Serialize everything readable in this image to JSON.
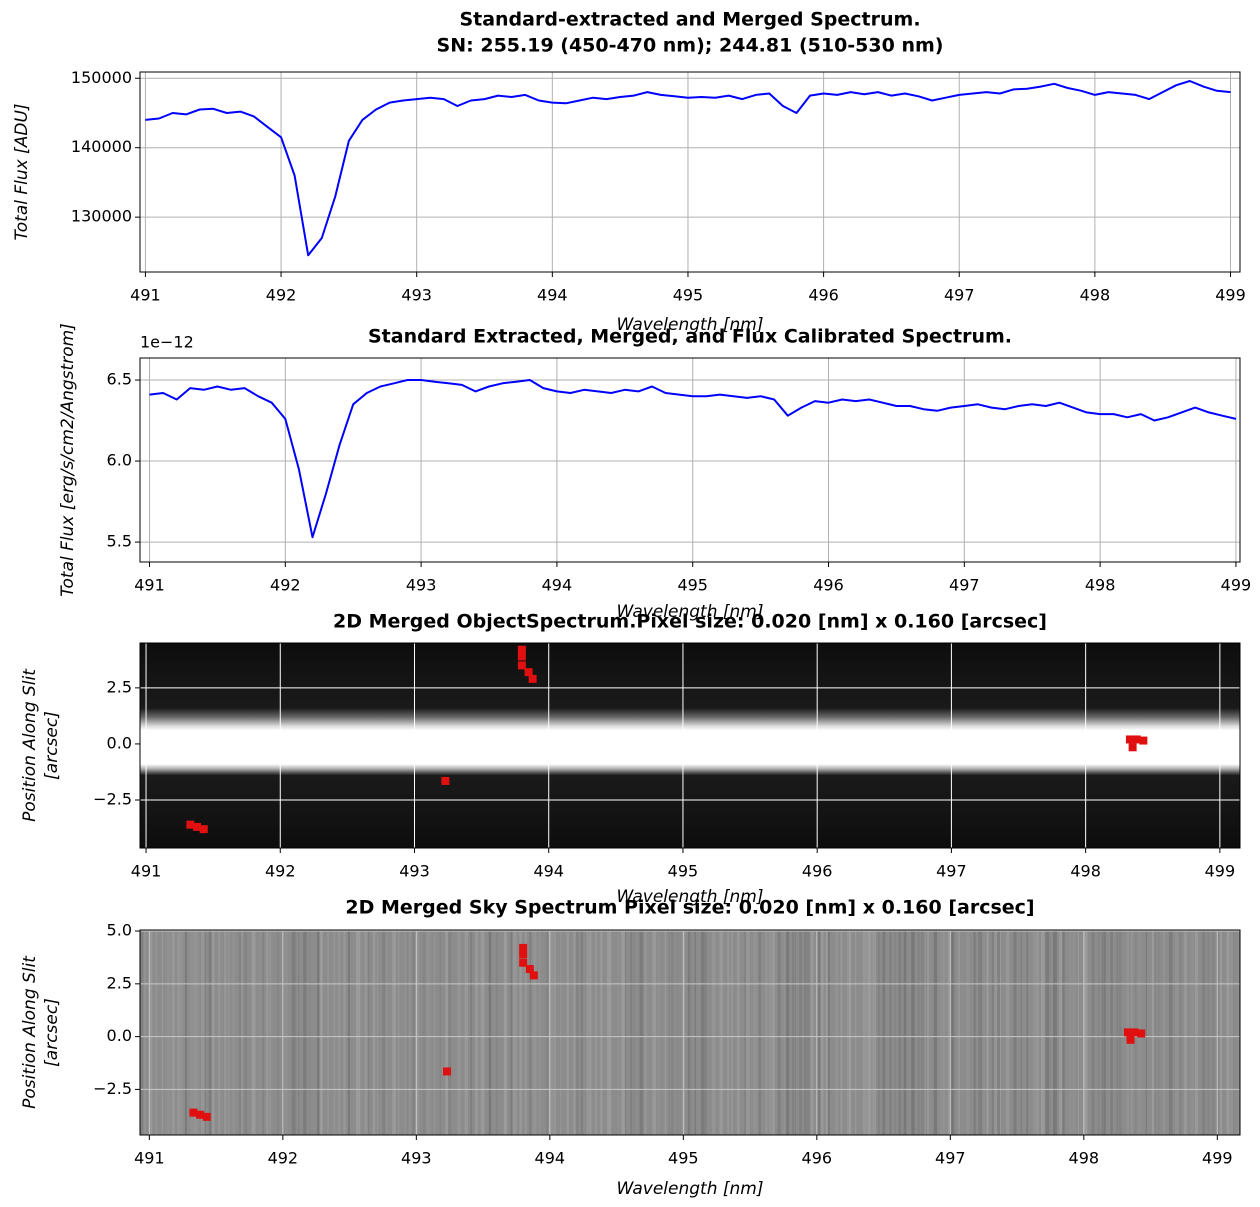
{
  "chart_data": [
    {
      "type": "line",
      "title": [
        "Standard-extracted and Merged Spectrum.",
        "SN: 255.19 (450-470 nm); 244.81 (510-530 nm)"
      ],
      "xlabel": "Wavelength [nm]",
      "ylabel": [
        "Total Flux [ADU]"
      ],
      "xlim": [
        490.96,
        499.07
      ],
      "ylim": [
        122100,
        150900
      ],
      "xticks": [
        491,
        492,
        493,
        494,
        495,
        496,
        497,
        498,
        499
      ],
      "yticks": [
        130000,
        140000,
        150000
      ],
      "grid": true,
      "grid_color": "#b0b0b0",
      "x": [
        491.0,
        491.1,
        491.2,
        491.3,
        491.4,
        491.5,
        491.6,
        491.7,
        491.8,
        491.9,
        492.0,
        492.1,
        492.2,
        492.3,
        492.4,
        492.5,
        492.6,
        492.7,
        492.8,
        492.9,
        493.0,
        493.1,
        493.2,
        493.3,
        493.4,
        493.5,
        493.6,
        493.7,
        493.8,
        493.9,
        494.0,
        494.1,
        494.2,
        494.3,
        494.4,
        494.5,
        494.6,
        494.7,
        494.8,
        494.9,
        495.0,
        495.1,
        495.2,
        495.3,
        495.4,
        495.5,
        495.6,
        495.7,
        495.8,
        495.9,
        496.0,
        496.1,
        496.2,
        496.3,
        496.4,
        496.5,
        496.6,
        496.7,
        496.8,
        496.9,
        497.0,
        497.1,
        497.2,
        497.3,
        497.4,
        497.5,
        497.6,
        497.7,
        497.8,
        497.9,
        498.0,
        498.1,
        498.2,
        498.3,
        498.4,
        498.5,
        498.6,
        498.7,
        498.8,
        498.9,
        499.0
      ],
      "series": [
        {
          "color": "#0000ff",
          "values": [
            144000,
            144200,
            145000,
            144800,
            145500,
            145600,
            145000,
            145200,
            144500,
            143000,
            141500,
            136000,
            124500,
            127000,
            133000,
            141000,
            144000,
            145500,
            146500,
            146800,
            147000,
            147200,
            147000,
            146000,
            146800,
            147000,
            147500,
            147300,
            147600,
            146800,
            146500,
            146400,
            146800,
            147200,
            147000,
            147300,
            147500,
            148000,
            147600,
            147400,
            147200,
            147300,
            147200,
            147500,
            147000,
            147600,
            147800,
            146000,
            145000,
            147500,
            147800,
            147600,
            148000,
            147700,
            148000,
            147500,
            147800,
            147400,
            146800,
            147200,
            147600,
            147800,
            148000,
            147800,
            148400,
            148500,
            148800,
            149200,
            148600,
            148200,
            147600,
            148000,
            147800,
            147600,
            147000,
            148000,
            149000,
            149600,
            148800,
            148200,
            148000
          ]
        }
      ]
    },
    {
      "type": "line",
      "title": [
        "Standard Extracted, Merged, and Flux Calibrated Spectrum."
      ],
      "xlabel": "Wavelength [nm]",
      "ylabel": [
        "Total Flux [erg/s/cm2/Angstrom]"
      ],
      "y_offset_label": "1e−12",
      "xlim": [
        490.93,
        499.03
      ],
      "ylim": [
        5.377,
        6.636
      ],
      "xticks": [
        491,
        492,
        493,
        494,
        495,
        496,
        497,
        498,
        499
      ],
      "yticks": [
        5.5,
        {
          "value": 6,
          "label": "6.0"
        },
        6.5
      ],
      "grid": true,
      "grid_color": "#b0b0b0",
      "x": [
        491.0,
        491.1,
        491.2,
        491.3,
        491.4,
        491.5,
        491.6,
        491.7,
        491.8,
        491.9,
        492.0,
        492.1,
        492.2,
        492.3,
        492.4,
        492.5,
        492.6,
        492.7,
        492.8,
        492.9,
        493.0,
        493.1,
        493.2,
        493.3,
        493.4,
        493.5,
        493.6,
        493.7,
        493.8,
        493.9,
        494.0,
        494.1,
        494.2,
        494.3,
        494.4,
        494.5,
        494.6,
        494.7,
        494.8,
        494.9,
        495.0,
        495.1,
        495.2,
        495.3,
        495.4,
        495.5,
        495.6,
        495.7,
        495.8,
        495.9,
        496.0,
        496.1,
        496.2,
        496.3,
        496.4,
        496.5,
        496.6,
        496.7,
        496.8,
        496.9,
        497.0,
        497.1,
        497.2,
        497.3,
        497.4,
        497.5,
        497.6,
        497.7,
        497.8,
        497.9,
        498.0,
        498.1,
        498.2,
        498.3,
        498.4,
        498.5,
        498.6,
        498.7,
        498.8,
        498.9,
        499.0
      ],
      "series": [
        {
          "color": "#0000ff",
          "values": [
            6.41,
            6.42,
            6.38,
            6.45,
            6.44,
            6.46,
            6.44,
            6.45,
            6.4,
            6.36,
            6.26,
            5.95,
            5.53,
            5.8,
            6.1,
            6.35,
            6.42,
            6.46,
            6.48,
            6.5,
            6.5,
            6.49,
            6.48,
            6.47,
            6.43,
            6.46,
            6.48,
            6.49,
            6.5,
            6.45,
            6.43,
            6.42,
            6.44,
            6.43,
            6.42,
            6.44,
            6.43,
            6.46,
            6.42,
            6.41,
            6.4,
            6.4,
            6.41,
            6.4,
            6.39,
            6.4,
            6.38,
            6.28,
            6.33,
            6.37,
            6.36,
            6.38,
            6.37,
            6.38,
            6.36,
            6.34,
            6.34,
            6.32,
            6.31,
            6.33,
            6.34,
            6.35,
            6.33,
            6.32,
            6.34,
            6.35,
            6.34,
            6.36,
            6.33,
            6.3,
            6.29,
            6.29,
            6.27,
            6.29,
            6.25,
            6.27,
            6.3,
            6.33,
            6.3,
            6.28,
            6.26
          ]
        }
      ]
    },
    {
      "type": "image",
      "title": [
        "2D Merged ObjectSpectrum.Pixel size: 0.020 [nm] x 0.160 [arcsec]"
      ],
      "xlabel": "Wavelength [nm]",
      "ylabel": [
        "Position Along Slit",
        "[arcsec]"
      ],
      "xlim": [
        490.955,
        499.15
      ],
      "ylim": [
        -4.64,
        4.5
      ],
      "xticks": [
        491,
        492,
        493,
        494,
        495,
        496,
        497,
        498,
        499
      ],
      "yticks": [
        {
          "value": -2.5,
          "label": "−2.5"
        },
        {
          "value": 0,
          "label": "0.0"
        },
        2.5
      ],
      "grid": true,
      "grid_color": "#ffffff",
      "profile": {
        "position": [
          4.5,
          1.6,
          1.2,
          0.8,
          0.6,
          -0.9,
          -1.1,
          -1.4,
          -4.64
        ],
        "brightness": [
          0.05,
          0.1,
          0.4,
          0.85,
          1,
          1,
          0.7,
          0.1,
          0.05
        ]
      },
      "markers": {
        "color": "#e01010",
        "x": [
          491.33,
          491.38,
          491.43,
          493.23,
          493.8,
          493.8,
          493.8,
          493.85,
          493.88,
          498.33,
          498.38,
          498.43,
          498.35
        ],
        "y": [
          -3.6,
          -3.7,
          -3.8,
          -1.65,
          4.2,
          3.9,
          3.5,
          3.2,
          2.9,
          0.2,
          0.2,
          0.15,
          -0.15
        ]
      }
    },
    {
      "type": "image",
      "title": [
        "2D Merged Sky Spectrum Pixel size: 0.020 [nm] x 0.160 [arcsec]"
      ],
      "xlabel": "Wavelength [nm]",
      "ylabel": [
        "Position Along Slit",
        "[arcsec]"
      ],
      "xlim": [
        490.93,
        499.17
      ],
      "ylim": [
        -4.66,
        5.05
      ],
      "xticks": [
        491,
        492,
        493,
        494,
        495,
        496,
        497,
        498,
        499
      ],
      "yticks": [
        {
          "value": -2.5,
          "label": "−2.5"
        },
        {
          "value": 0,
          "label": "0.0"
        },
        2.5,
        {
          "value": 5,
          "label": "5.0"
        }
      ],
      "grid": true,
      "grid_color": "#c8c8c8",
      "color": "#8c8c8c",
      "markers": {
        "color": "#e01010",
        "x": [
          491.33,
          491.38,
          491.43,
          493.23,
          493.8,
          493.8,
          493.8,
          493.85,
          493.88,
          498.33,
          498.38,
          498.43,
          498.35
        ],
        "y": [
          -3.6,
          -3.7,
          -3.8,
          -1.65,
          4.2,
          3.9,
          3.5,
          3.2,
          2.9,
          0.2,
          0.2,
          0.15,
          -0.15
        ]
      }
    }
  ]
}
